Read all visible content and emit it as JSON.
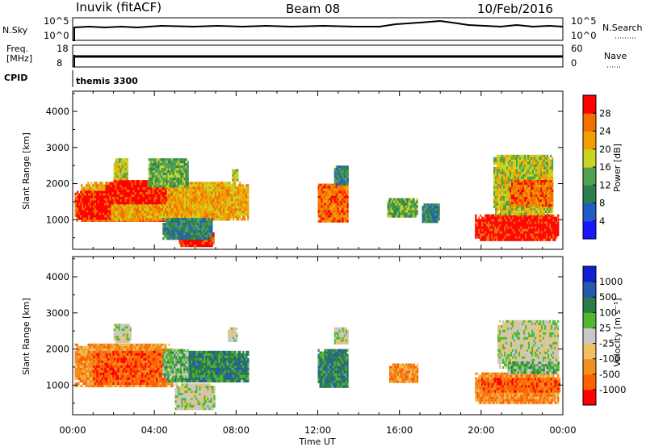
{
  "header": {
    "station": "Inuvik (fitACF)",
    "beam": "Beam 08",
    "date": "10/Feb/2016"
  },
  "summary_panels": {
    "nsky_label": "N.Sky",
    "nsky_ticks": [
      "10^5",
      "10^0"
    ],
    "nsearch_label": "N.Search",
    "nsearch_ticks": [
      "10^5",
      "10^0"
    ],
    "freq_label_1": "Freq.",
    "freq_label_2": "[MHz]",
    "freq_ticks": [
      "18",
      "8"
    ],
    "nave_label": "Nave",
    "nave_ticks": [
      "60",
      "0"
    ],
    "cpid_label": "CPID",
    "cpid_value": "themis 3300"
  },
  "chart_data": [
    {
      "type": "heatmap",
      "ylabel": "Slant Range [km]",
      "ylim": [
        180,
        4560
      ],
      "yticks": [
        "4000",
        "3000",
        "2000",
        "1000"
      ],
      "xlim": [
        0,
        24
      ],
      "colorbar": {
        "label": "Power [dB]",
        "ticks": [
          "28",
          "24",
          "20",
          "16",
          "12",
          "8",
          "4"
        ],
        "colors": [
          "#1818ff",
          "#205cc8",
          "#2c8050",
          "#50a050",
          "#c8d420",
          "#f0a000",
          "#f07000",
          "#ff0000"
        ]
      },
      "regions": [
        {
          "t0": 0.1,
          "t1": 5.3,
          "r0": 950,
          "r1": 1750,
          "c": 6
        },
        {
          "t0": 0.4,
          "t1": 8.6,
          "r0": 1000,
          "r1": 2050,
          "c": 5
        },
        {
          "t0": 1.6,
          "t1": 4.6,
          "r0": 1450,
          "r1": 2100,
          "c": 7
        },
        {
          "t0": 0.2,
          "t1": 1.8,
          "r0": 1000,
          "r1": 1800,
          "c": 7
        },
        {
          "t0": 2.0,
          "t1": 2.7,
          "r0": 2100,
          "r1": 2700,
          "c": 4
        },
        {
          "t0": 3.7,
          "t1": 5.6,
          "r0": 1900,
          "r1": 2700,
          "c": 3
        },
        {
          "t0": 5.2,
          "t1": 6.9,
          "r0": 300,
          "r1": 650,
          "c": 7
        },
        {
          "t0": 4.4,
          "t1": 6.8,
          "r0": 500,
          "r1": 1050,
          "c": 2
        },
        {
          "t0": 7.8,
          "t1": 8.1,
          "r0": 2100,
          "r1": 2400,
          "c": 4
        },
        {
          "t0": 12.0,
          "t1": 13.5,
          "r0": 950,
          "r1": 2000,
          "c": 6
        },
        {
          "t0": 12.8,
          "t1": 13.5,
          "r0": 2000,
          "r1": 2500,
          "c": 2
        },
        {
          "t0": 15.4,
          "t1": 16.9,
          "r0": 1100,
          "r1": 1600,
          "c": 3
        },
        {
          "t0": 17.1,
          "t1": 17.9,
          "r0": 950,
          "r1": 1450,
          "c": 2
        },
        {
          "t0": 19.7,
          "t1": 23.8,
          "r0": 450,
          "r1": 1150,
          "c": 7
        },
        {
          "t0": 20.6,
          "t1": 23.5,
          "r0": 1150,
          "r1": 2800,
          "c": 4
        },
        {
          "t0": 21.4,
          "t1": 23.5,
          "r0": 1400,
          "r1": 2100,
          "c": 6
        }
      ]
    },
    {
      "type": "heatmap",
      "ylabel": "Slant Range [km]",
      "ylim": [
        180,
        4560
      ],
      "yticks": [
        "4000",
        "3000",
        "2000",
        "1000"
      ],
      "xlim": [
        0,
        24
      ],
      "xticks": [
        "00:00",
        "04:00",
        "08:00",
        "12:00",
        "16:00",
        "20:00",
        "00:00"
      ],
      "xlabel": "Time UT",
      "colorbar": {
        "label": "Velocity [m s⁻¹]",
        "ticks": [
          "1000",
          "500",
          "100",
          "25",
          "-25",
          "-100",
          "-500",
          "-1000"
        ],
        "colors": [
          "#ff0000",
          "#ff6000",
          "#f09020",
          "#f0c060",
          "#c8c8c8",
          "#50b830",
          "#2c7c48",
          "#2858b0",
          "#1020d0"
        ]
      },
      "regions": [
        {
          "t0": 0.1,
          "t1": 4.9,
          "r0": 950,
          "r1": 2150,
          "c": 2
        },
        {
          "t0": 1.0,
          "t1": 4.6,
          "r0": 1050,
          "r1": 1950,
          "c": 1
        },
        {
          "t0": 4.6,
          "t1": 8.6,
          "r0": 1100,
          "r1": 1950,
          "c": 6
        },
        {
          "t0": 4.4,
          "t1": 5.6,
          "r0": 1200,
          "r1": 2000,
          "c": 5
        },
        {
          "t0": 2.0,
          "t1": 2.8,
          "r0": 2200,
          "r1": 2700,
          "c": 4
        },
        {
          "t0": 5.0,
          "t1": 6.9,
          "r0": 350,
          "r1": 1050,
          "c": 4
        },
        {
          "t0": 7.6,
          "t1": 8.0,
          "r0": 2200,
          "r1": 2600,
          "c": 4
        },
        {
          "t0": 12.0,
          "t1": 13.5,
          "r0": 950,
          "r1": 2000,
          "c": 6
        },
        {
          "t0": 12.8,
          "t1": 13.5,
          "r0": 2150,
          "r1": 2600,
          "c": 4
        },
        {
          "t0": 15.5,
          "t1": 16.9,
          "r0": 1100,
          "r1": 1600,
          "c": 2
        },
        {
          "t0": 19.7,
          "t1": 23.8,
          "r0": 500,
          "r1": 1350,
          "c": 2
        },
        {
          "t0": 20.0,
          "t1": 23.8,
          "r0": 800,
          "r1": 1200,
          "c": 1
        },
        {
          "t0": 20.8,
          "t1": 23.8,
          "r0": 1500,
          "r1": 2800,
          "c": 4
        },
        {
          "t0": 21.3,
          "t1": 23.8,
          "r0": 1350,
          "r1": 1650,
          "c": 5
        }
      ]
    }
  ]
}
